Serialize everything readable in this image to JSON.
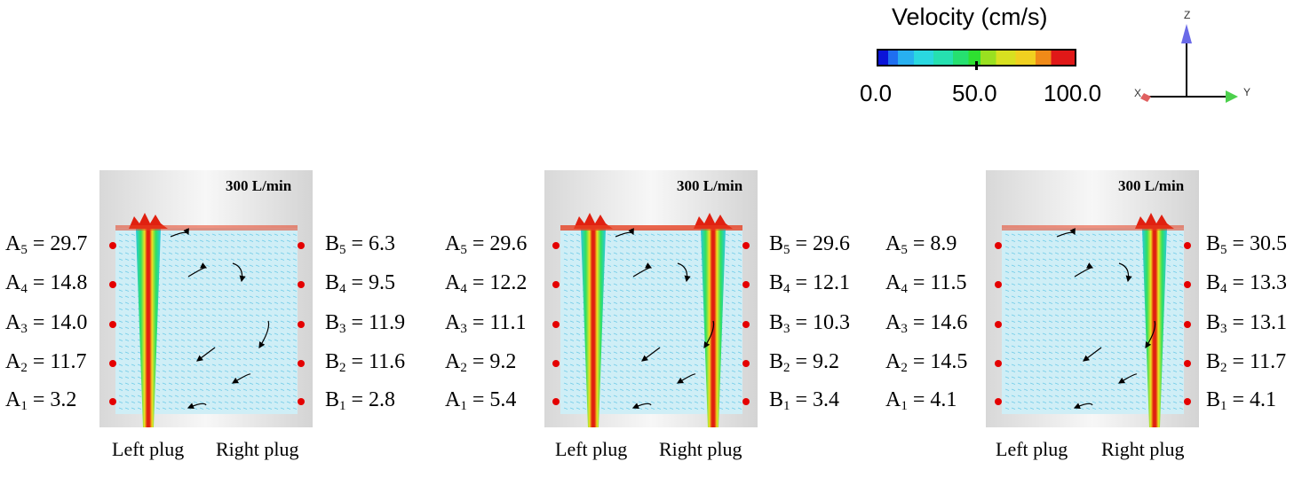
{
  "legend": {
    "title": "Velocity (cm/s)",
    "min": "0.0",
    "mid": "50.0",
    "max": "100.0",
    "axes": {
      "z": "Z",
      "x": "X",
      "y": "Y"
    }
  },
  "panels": [
    {
      "flow_rate": "300 L/min",
      "jets": [
        "left"
      ],
      "a": [
        {
          "sub": "5",
          "val": "= 29.7"
        },
        {
          "sub": "4",
          "val": "= 14.8"
        },
        {
          "sub": "3",
          "val": "= 14.0"
        },
        {
          "sub": "2",
          "val": "= 11.7"
        },
        {
          "sub": "1",
          "val": "= 3.2"
        }
      ],
      "b": [
        {
          "sub": "5",
          "val": "= 6.3"
        },
        {
          "sub": "4",
          "val": "= 9.5"
        },
        {
          "sub": "3",
          "val": "= 11.9"
        },
        {
          "sub": "2",
          "val": "= 11.6"
        },
        {
          "sub": "1",
          "val": "= 2.8"
        }
      ],
      "left_plug": "Left plug",
      "right_plug": "Right plug"
    },
    {
      "flow_rate": "300 L/min",
      "jets": [
        "left",
        "right"
      ],
      "a": [
        {
          "sub": "5",
          "val": "= 29.6"
        },
        {
          "sub": "4",
          "val": "= 12.2"
        },
        {
          "sub": "3",
          "val": "= 11.1"
        },
        {
          "sub": "2",
          "val": "= 9.2"
        },
        {
          "sub": "1",
          "val": "= 5.4"
        }
      ],
      "b": [
        {
          "sub": "5",
          "val": "= 29.6"
        },
        {
          "sub": "4",
          "val": "= 12.1"
        },
        {
          "sub": "3",
          "val": "= 10.3"
        },
        {
          "sub": "2",
          "val": "= 9.2"
        },
        {
          "sub": "1",
          "val": "= 3.4"
        }
      ],
      "left_plug": "Left plug",
      "right_plug": "Right plug"
    },
    {
      "flow_rate": "300 L/min",
      "jets": [
        "right"
      ],
      "a": [
        {
          "sub": "5",
          "val": "= 8.9"
        },
        {
          "sub": "4",
          "val": "= 11.5"
        },
        {
          "sub": "3",
          "val": "= 14.6"
        },
        {
          "sub": "2",
          "val": "= 14.5"
        },
        {
          "sub": "1",
          "val": "= 4.1"
        }
      ],
      "b": [
        {
          "sub": "5",
          "val": "= 30.5"
        },
        {
          "sub": "4",
          "val": "= 13.3"
        },
        {
          "sub": "3",
          "val": "= 13.1"
        },
        {
          "sub": "2",
          "val": "= 11.7"
        },
        {
          "sub": "1",
          "val": "= 4.1"
        }
      ],
      "left_plug": "Left plug",
      "right_plug": "Right plug"
    }
  ]
}
